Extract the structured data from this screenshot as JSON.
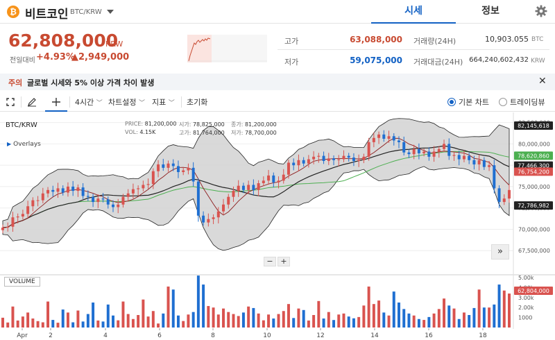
{
  "header": {
    "coin_symbol_glyph": "₿",
    "coin_name": "비트코인",
    "pair": "BTC/KRW",
    "tabs": [
      {
        "label": "시세",
        "active": true
      },
      {
        "label": "정보",
        "active": false
      }
    ]
  },
  "summary": {
    "price": "62,808,000",
    "unit": "KRW",
    "change_label": "전일대비",
    "change_pct": "+4.93%",
    "change_amt": "▲2,949,000",
    "high_label": "고가",
    "high_value": "63,088,000",
    "low_label": "저가",
    "low_value": "59,075,000",
    "volume_label": "거래량(24H)",
    "volume_value": "10,903.055",
    "volume_unit": "BTC",
    "amount_label": "거래대금(24H)",
    "amount_value": "664,240,602,432",
    "amount_unit": "KRW"
  },
  "notice": {
    "tag": "주의",
    "text": "글로벌 시세와 5% 이상 가격 차이 발생",
    "close": "✕"
  },
  "toolbar": {
    "interval": "4시간",
    "chart_settings": "차트설정",
    "indicators": "지표",
    "reset": "초기화",
    "basic_chart": "기본 차트",
    "tradingview": "트레이딩뷰"
  },
  "chart_info": {
    "title": "BTC/KRW",
    "overlays": "Overlays",
    "price_key": "PRICE:",
    "price_val": "81,200,000",
    "vol_key": "VOL:",
    "vol_val": "4.15K",
    "open_key": "시가:",
    "open_val": "78,825,000",
    "high_key": "고가:",
    "high_val": "81,764,000",
    "close_key": "종가:",
    "close_val": "81,200,000",
    "low_key": "저가:",
    "low_val": "78,700,000",
    "zoom_out": "−",
    "zoom_in": "+",
    "scroll_right": "»",
    "volume_tab": "VOLUME"
  },
  "price_badges": [
    {
      "value": "82,145,618",
      "color": "#222222"
    },
    {
      "value": "78,620,860",
      "color": "#4caf50"
    },
    {
      "value": "77,466,300",
      "color": "#222222"
    },
    {
      "value": "76,754,200",
      "color": "#d9534f"
    },
    {
      "value": "72,786,982",
      "color": "#222222"
    },
    {
      "value": "62,804,000",
      "color": "#d9534f"
    }
  ],
  "chart_data": {
    "type": "candlestick",
    "x_ticks": [
      "Apr",
      "2",
      "4",
      "6",
      "8",
      "10",
      "12",
      "14",
      "16",
      "18"
    ],
    "y_ticks": [
      "82,500,000",
      "80,000,000",
      "77,500,000",
      "75,000,000",
      "72,500,000",
      "70,000,000",
      "67,500,000"
    ],
    "ylim": [
      65000000,
      83200000
    ],
    "volume_ticks": [
      "5.00k",
      "4.00k",
      "3.00k",
      "2.00k",
      "1000"
    ],
    "volume_ylim": [
      0,
      5000
    ],
    "grid": true,
    "colors": {
      "up": "#d9534f",
      "down": "#1f6fd1",
      "band_fill": "#d2d2d2",
      "ma_mid": "#8c1c1c",
      "ma_slow": "#222222",
      "ma_long": "#4caf50"
    },
    "price_series": [
      70.2,
      70.3,
      71.4,
      71.5,
      71.8,
      72.7,
      73.4,
      73.4,
      74.2,
      74.6,
      74.4,
      74.8,
      74.3,
      75.0,
      74.5,
      74.9,
      73.9,
      73.8,
      73.2,
      73.6,
      73.5,
      72.9,
      72.6,
      72.9,
      73.8,
      74.2,
      74.7,
      74.8,
      75.2,
      75.3,
      76.8,
      77.6,
      77.2,
      77.7,
      77.4,
      76.7,
      76.9,
      77.2,
      75.6,
      71.6,
      70.8,
      71.2,
      71.4,
      72.1,
      72.9,
      73.8,
      74.5,
      75.1,
      74.6,
      75.2,
      74.6,
      75.4,
      75.7,
      76.3,
      75.5,
      75.7,
      76.4,
      77.8,
      77.5,
      78.1,
      77.7,
      78.2,
      78.5,
      78.6,
      78.0,
      78.3,
      78.1,
      78.2,
      78.6,
      78.4,
      78.0,
      78.1,
      78.5,
      80.2,
      80.7,
      81.1,
      80.6,
      80.9,
      80.4,
      80.2,
      79.0,
      78.8,
      79.4,
      78.9,
      79.1,
      78.5,
      79.1,
      79.4,
      80.0,
      78.6,
      78.7,
      78.2,
      78.6,
      78.1,
      77.6,
      78.1,
      77.3,
      77.5,
      74.8,
      73.2,
      73.6,
      74.6
    ],
    "volume_series": [
      980,
      500,
      2100,
      700,
      1100,
      1500,
      900,
      640,
      520,
      2600,
      760,
      480,
      1800,
      1500,
      520,
      1700,
      600,
      1350,
      2500,
      700,
      600,
      2300,
      1200,
      720,
      2600,
      1350,
      850,
      1250,
      2800,
      1100,
      1650,
      400,
      1400,
      4100,
      3800,
      1200,
      650,
      1300,
      1550,
      5200,
      4300,
      2150,
      2000,
      1300,
      1900,
      1550,
      1350,
      1150,
      1500,
      2100,
      1950,
      1400,
      720,
      1300,
      900,
      1350,
      1650,
      2350,
      950,
      1900,
      1750,
      700,
      1250,
      2650,
      900,
      1550,
      750,
      1300,
      1400,
      1100,
      920,
      1050,
      2200,
      4100,
      2350,
      2700,
      1500,
      1200,
      3600,
      2500,
      1850,
      1400,
      1200,
      850,
      760,
      1050,
      1400,
      1850,
      2900,
      2200,
      1900,
      850,
      1500,
      1250,
      1950,
      3800,
      2000,
      2000,
      2300,
      4300,
      3700,
      3400
    ]
  }
}
